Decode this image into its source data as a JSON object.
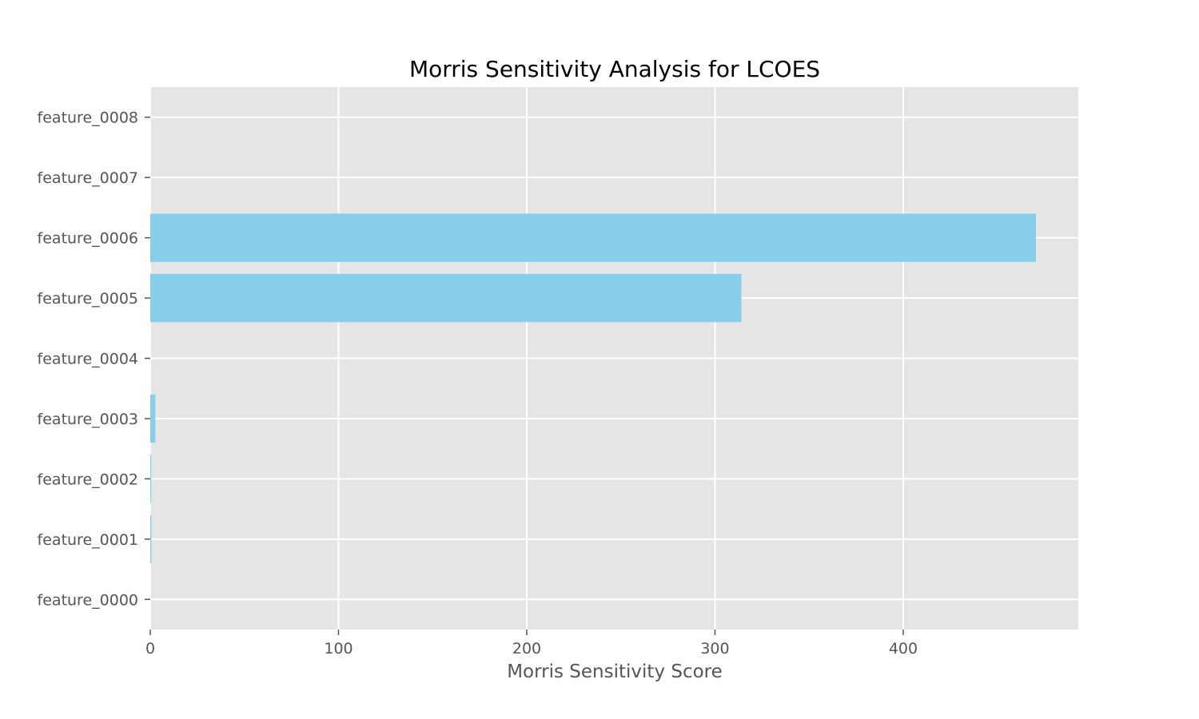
{
  "chart_data": {
    "type": "bar",
    "orientation": "horizontal",
    "title": "Morris Sensitivity Analysis for LCOES",
    "xlabel": "Morris Sensitivity Score",
    "ylabel": "",
    "categories": [
      "feature_0000",
      "feature_0001",
      "feature_0002",
      "feature_0003",
      "feature_0004",
      "feature_0005",
      "feature_0006",
      "feature_0007",
      "feature_0008"
    ],
    "values": [
      0,
      0.6,
      0.5,
      2.7,
      0,
      314,
      470.5,
      0,
      0
    ],
    "xlim": [
      0,
      493
    ],
    "xticks": [
      0,
      100,
      200,
      300,
      400
    ],
    "grid": true,
    "legend": "none",
    "colors": {
      "bar": "#87ceeb",
      "plot_background": "#e5e5e5",
      "grid": "#ffffff",
      "tick_text": "#555555",
      "title_text": "#000000"
    }
  }
}
